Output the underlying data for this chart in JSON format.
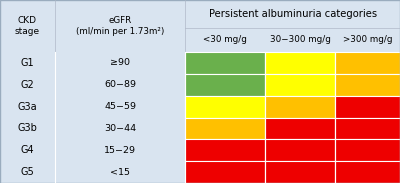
{
  "ckd_stages": [
    "G1",
    "G2",
    "G3a",
    "G3b",
    "G4",
    "G5"
  ],
  "egfr_labels": [
    "≥90",
    "60−89",
    "45−59",
    "30−44",
    "15−29",
    "<15"
  ],
  "albuminuria_cols": [
    "<30 mg/g",
    "30−300 mg/g",
    ">300 mg/g"
  ],
  "header_main": "Persistent albuminuria categories",
  "col1_header": "CKD\nstage",
  "col2_header": "eGFR\n(ml/min per 1.73m²)",
  "grid_colors": [
    [
      "#6ab04c",
      "#ffff00",
      "#ffc000"
    ],
    [
      "#6ab04c",
      "#ffff00",
      "#ffc000"
    ],
    [
      "#ffff00",
      "#ffc000",
      "#ee0000"
    ],
    [
      "#ffc000",
      "#ee0000",
      "#ee0000"
    ],
    [
      "#ee0000",
      "#ee0000",
      "#ee0000"
    ],
    [
      "#ee0000",
      "#ee0000",
      "#ee0000"
    ]
  ],
  "header_bg": "#d9e4f0",
  "label_bg": "#d9e4f0",
  "fig_bg": "#ffffff",
  "border_color": "#ffffff",
  "text_color": "#000000",
  "figw": 4.0,
  "figh": 1.83,
  "dpi": 100
}
